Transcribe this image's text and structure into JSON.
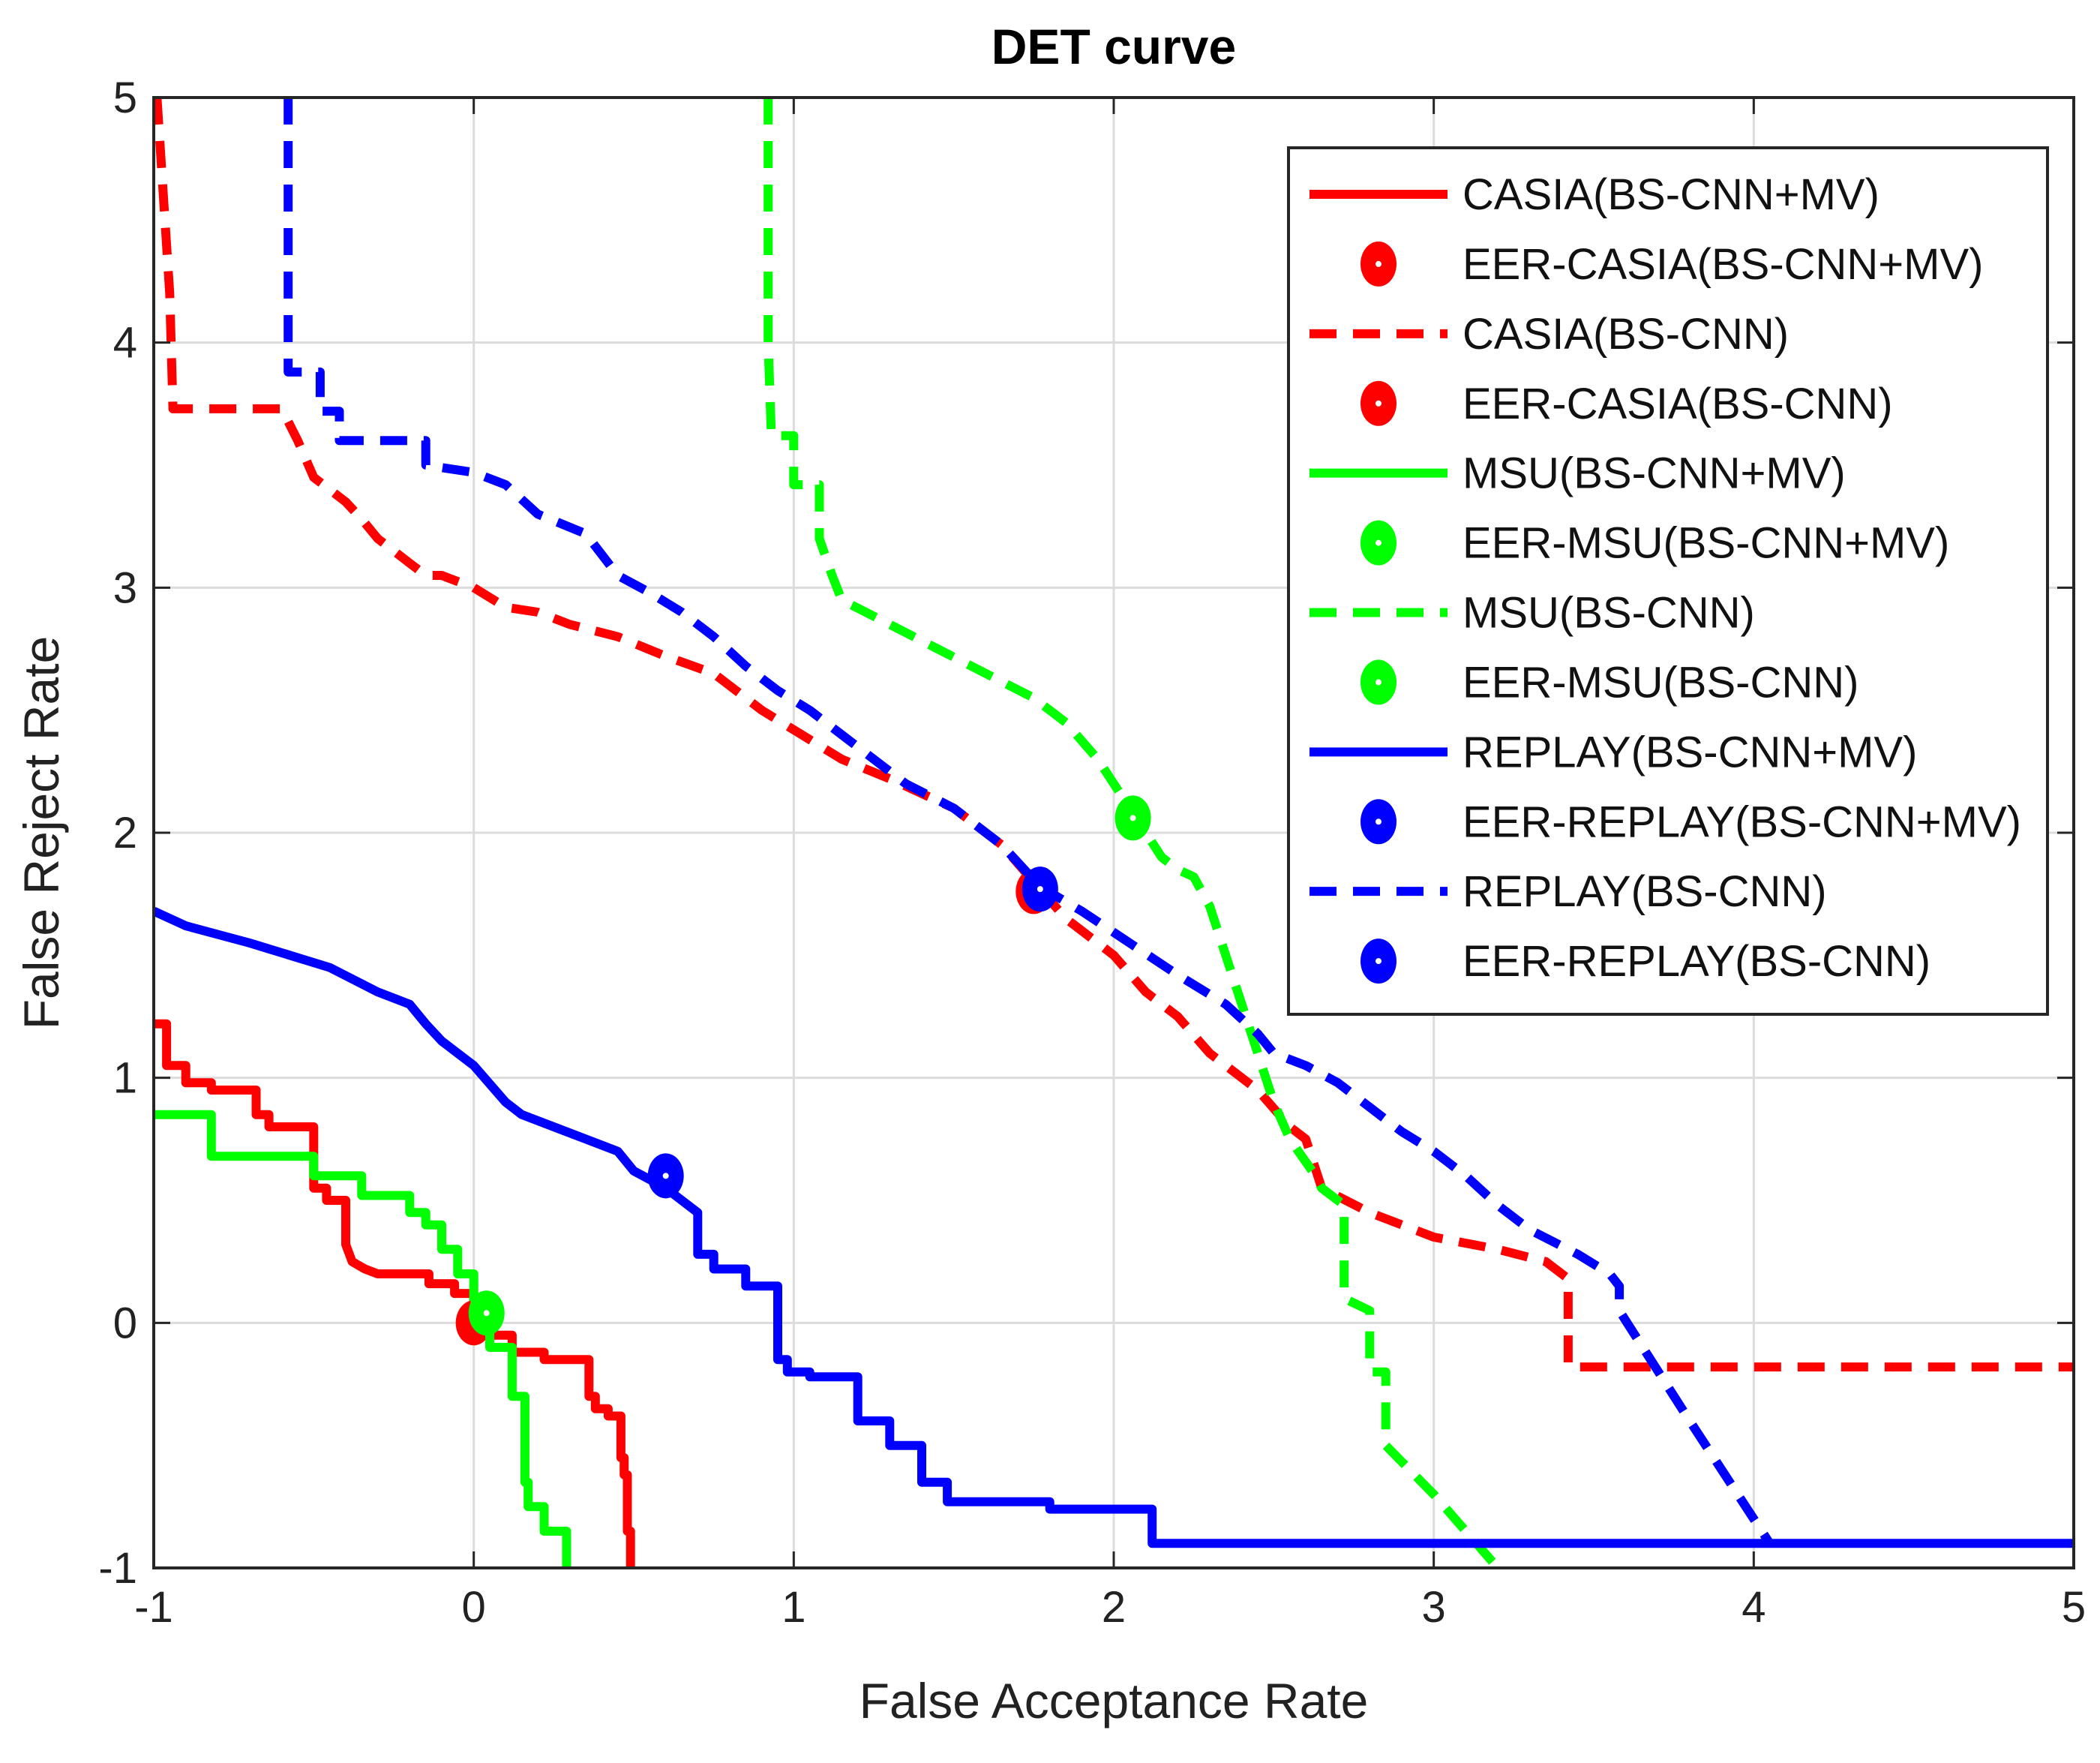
{
  "chart_data": {
    "type": "line",
    "title": "DET curve",
    "xlabel": "False Acceptance Rate",
    "ylabel": "False Reject Rate",
    "xlim": [
      -1,
      5
    ],
    "ylim": [
      -1,
      5
    ],
    "xticks": [
      -1,
      0,
      1,
      2,
      3,
      4,
      5
    ],
    "yticks": [
      -1,
      0,
      1,
      2,
      3,
      4,
      5
    ],
    "xtick_labels": [
      "-1",
      "0",
      "1",
      "2",
      "3",
      "4",
      "5"
    ],
    "ytick_labels": [
      "-1",
      "0",
      "1",
      "2",
      "3",
      "4",
      "5"
    ],
    "grid": true,
    "legend_position": "top-right",
    "series": [
      {
        "name": "CASIA(BS-CNN+MV)",
        "color": "#ff0000",
        "style": "solid",
        "x": [
          -1.0,
          -0.96,
          -0.96,
          -0.9,
          -0.9,
          -0.82,
          -0.82,
          -0.68,
          -0.68,
          -0.64,
          -0.64,
          -0.5,
          -0.5,
          -0.46,
          -0.46,
          -0.4,
          -0.4,
          -0.38,
          -0.34,
          -0.3,
          -0.3,
          -0.14,
          -0.14,
          -0.06,
          -0.06,
          0.0,
          0.0,
          0.12,
          0.12,
          0.22,
          0.22,
          0.36,
          0.36,
          0.38,
          0.38,
          0.42,
          0.42,
          0.46,
          0.46,
          0.47,
          0.47,
          0.48,
          0.48,
          0.49,
          0.49
        ],
        "y": [
          1.22,
          1.22,
          1.05,
          1.05,
          0.98,
          0.98,
          0.95,
          0.95,
          0.85,
          0.85,
          0.8,
          0.8,
          0.55,
          0.55,
          0.5,
          0.5,
          0.32,
          0.25,
          0.22,
          0.2,
          0.2,
          0.2,
          0.16,
          0.16,
          0.12,
          0.12,
          -0.05,
          -0.05,
          -0.12,
          -0.12,
          -0.15,
          -0.15,
          -0.3,
          -0.3,
          -0.35,
          -0.35,
          -0.38,
          -0.38,
          -0.55,
          -0.55,
          -0.62,
          -0.62,
          -0.85,
          -0.85,
          -1.0
        ]
      },
      {
        "name": "EER-CASIA(BS-CNN+MV)",
        "color": "#ff0000",
        "marker": true,
        "x": [
          0.0
        ],
        "y": [
          0.0
        ]
      },
      {
        "name": "CASIA(BS-CNN)",
        "color": "#ff0000",
        "style": "dashed",
        "x": [
          -0.99,
          -0.95,
          -0.94,
          -0.6,
          -0.55,
          -0.5,
          -0.4,
          -0.35,
          -0.3,
          -0.2,
          -0.15,
          -0.1,
          0.0,
          0.1,
          0.2,
          0.3,
          0.45,
          0.6,
          0.75,
          0.9,
          1.0,
          1.15,
          1.3,
          1.5,
          1.65,
          1.75,
          1.85,
          2.0,
          2.1,
          2.2,
          2.3,
          2.35,
          2.45,
          2.55,
          2.6,
          2.65,
          2.8,
          3.0,
          3.2,
          3.35,
          3.42,
          3.42,
          5.0
        ],
        "y": [
          5.0,
          4.2,
          3.73,
          3.73,
          3.6,
          3.45,
          3.35,
          3.28,
          3.2,
          3.1,
          3.05,
          3.05,
          3.0,
          2.92,
          2.9,
          2.85,
          2.8,
          2.72,
          2.65,
          2.5,
          2.42,
          2.3,
          2.22,
          2.1,
          1.95,
          1.8,
          1.65,
          1.5,
          1.35,
          1.25,
          1.1,
          1.05,
          0.95,
          0.8,
          0.75,
          0.55,
          0.45,
          0.35,
          0.3,
          0.25,
          0.18,
          -0.18,
          -0.18
        ]
      },
      {
        "name": "EER-CASIA(BS-CNN)",
        "color": "#ff0000",
        "marker": true,
        "x": [
          1.75
        ],
        "y": [
          1.76
        ]
      },
      {
        "name": "MSU(BS-CNN+MV)",
        "color": "#00ff00",
        "style": "solid",
        "x": [
          -1.0,
          -0.82,
          -0.82,
          -0.5,
          -0.5,
          -0.35,
          -0.35,
          -0.2,
          -0.2,
          -0.15,
          -0.15,
          -0.1,
          -0.1,
          -0.05,
          -0.05,
          0.0,
          0.0,
          0.05,
          0.05,
          0.12,
          0.12,
          0.16,
          0.16,
          0.17,
          0.17,
          0.22,
          0.22,
          0.29,
          0.29
        ],
        "y": [
          0.85,
          0.85,
          0.68,
          0.68,
          0.6,
          0.6,
          0.52,
          0.52,
          0.45,
          0.45,
          0.4,
          0.4,
          0.3,
          0.3,
          0.2,
          0.2,
          0.1,
          0.1,
          -0.1,
          -0.1,
          -0.3,
          -0.3,
          -0.65,
          -0.65,
          -0.75,
          -0.75,
          -0.85,
          -0.85,
          -1.0
        ]
      },
      {
        "name": "EER-MSU(BS-CNN+MV)",
        "color": "#00ff00",
        "marker": true,
        "x": [
          0.04
        ],
        "y": [
          0.04
        ]
      },
      {
        "name": "MSU(BS-CNN)",
        "color": "#00ff00",
        "style": "dashed",
        "x": [
          0.92,
          0.92,
          0.93,
          1.0,
          1.0,
          1.08,
          1.08,
          1.12,
          1.15,
          1.3,
          1.45,
          1.6,
          1.75,
          1.85,
          1.95,
          2.05,
          2.15,
          2.2,
          2.25,
          2.3,
          2.35,
          2.4,
          2.45,
          2.5,
          2.55,
          2.62,
          2.65,
          2.7,
          2.72,
          2.72,
          2.8,
          2.8,
          2.85,
          2.85,
          3.0,
          3.2
        ],
        "y": [
          5.0,
          4.0,
          3.62,
          3.62,
          3.42,
          3.42,
          3.2,
          3.05,
          2.95,
          2.85,
          2.75,
          2.65,
          2.55,
          2.45,
          2.3,
          2.1,
          1.9,
          1.85,
          1.82,
          1.7,
          1.5,
          1.3,
          1.1,
          0.9,
          0.75,
          0.62,
          0.55,
          0.5,
          0.48,
          0.1,
          0.05,
          -0.2,
          -0.2,
          -0.5,
          -0.7,
          -1.0
        ]
      },
      {
        "name": "EER-MSU(BS-CNN)",
        "color": "#00ff00",
        "marker": true,
        "x": [
          2.06
        ],
        "y": [
          2.06
        ]
      },
      {
        "name": "REPLAY(BS-CNN+MV)",
        "color": "#0000ff",
        "style": "solid",
        "x": [
          -1.0,
          -0.9,
          -0.7,
          -0.45,
          -0.3,
          -0.2,
          -0.15,
          -0.1,
          0.0,
          0.1,
          0.15,
          0.25,
          0.35,
          0.45,
          0.5,
          0.6,
          0.7,
          0.7,
          0.75,
          0.75,
          0.85,
          0.85,
          0.95,
          0.95,
          0.98,
          0.98,
          1.05,
          1.05,
          1.2,
          1.2,
          1.3,
          1.3,
          1.4,
          1.4,
          1.48,
          1.48,
          1.8,
          1.8,
          2.12,
          2.12,
          5.0
        ],
        "y": [
          1.68,
          1.62,
          1.55,
          1.45,
          1.35,
          1.3,
          1.22,
          1.15,
          1.05,
          0.9,
          0.85,
          0.8,
          0.75,
          0.7,
          0.62,
          0.55,
          0.45,
          0.28,
          0.28,
          0.22,
          0.22,
          0.15,
          0.15,
          -0.15,
          -0.15,
          -0.2,
          -0.2,
          -0.22,
          -0.22,
          -0.4,
          -0.4,
          -0.5,
          -0.5,
          -0.65,
          -0.65,
          -0.73,
          -0.73,
          -0.76,
          -0.76,
          -0.9,
          -0.9
        ]
      },
      {
        "name": "EER-REPLAY(BS-CNN+MV)",
        "color": "#0000ff",
        "marker": true,
        "x": [
          0.6
        ],
        "y": [
          0.6
        ]
      },
      {
        "name": "REPLAY(BS-CNN)",
        "color": "#0000ff",
        "style": "dashed",
        "x": [
          -0.58,
          -0.58,
          -0.48,
          -0.48,
          -0.42,
          -0.42,
          -0.15,
          -0.15,
          0.0,
          0.1,
          0.2,
          0.35,
          0.45,
          0.55,
          0.65,
          0.75,
          0.85,
          0.95,
          1.05,
          1.15,
          1.25,
          1.35,
          1.5,
          1.65,
          1.77,
          1.9,
          2.05,
          2.2,
          2.35,
          2.45,
          2.5,
          2.6,
          2.7,
          2.8,
          2.9,
          3.0,
          3.1,
          3.2,
          3.3,
          3.45,
          3.55,
          3.58,
          3.58,
          3.8,
          4.05
        ],
        "y": [
          5.0,
          3.88,
          3.88,
          3.72,
          3.72,
          3.6,
          3.6,
          3.5,
          3.47,
          3.42,
          3.3,
          3.22,
          3.05,
          2.98,
          2.9,
          2.8,
          2.68,
          2.58,
          2.5,
          2.4,
          2.3,
          2.2,
          2.1,
          1.95,
          1.78,
          1.68,
          1.55,
          1.42,
          1.3,
          1.18,
          1.1,
          1.05,
          0.98,
          0.88,
          0.78,
          0.7,
          0.6,
          0.48,
          0.38,
          0.28,
          0.2,
          0.15,
          0.05,
          -0.4,
          -0.9
        ]
      },
      {
        "name": "EER-REPLAY(BS-CNN)",
        "color": "#0000ff",
        "marker": true,
        "x": [
          1.77
        ],
        "y": [
          1.77
        ]
      }
    ]
  }
}
